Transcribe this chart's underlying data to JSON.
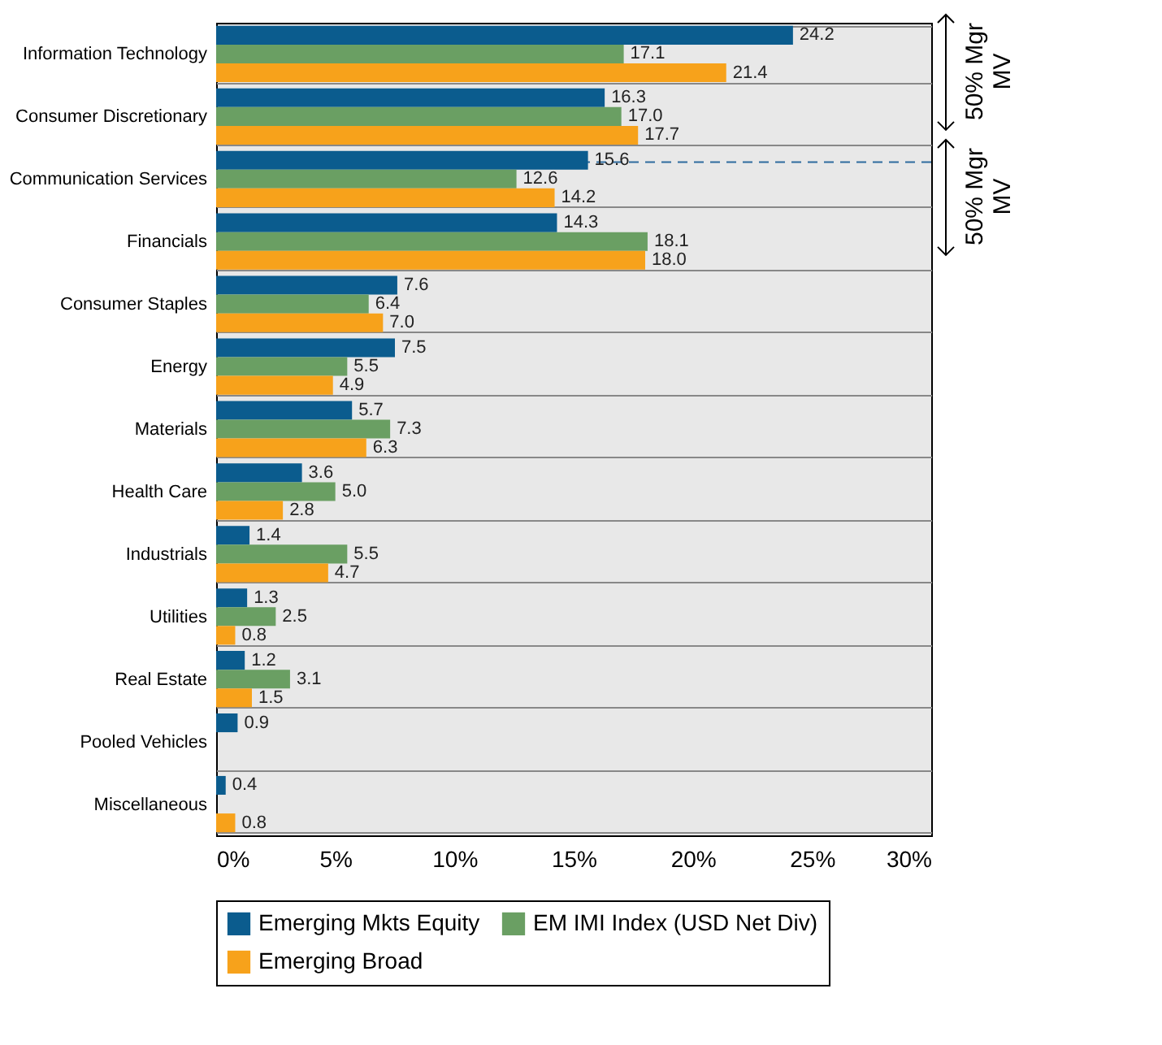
{
  "chart_data": {
    "type": "bar",
    "orientation": "horizontal",
    "categories": [
      "Information Technology",
      "Consumer Discretionary",
      "Communication Services",
      "Financials",
      "Consumer Staples",
      "Energy",
      "Materials",
      "Health Care",
      "Industrials",
      "Utilities",
      "Real Estate",
      "Pooled Vehicles",
      "Miscellaneous"
    ],
    "series": [
      {
        "name": "Emerging Mkts Equity",
        "color": "#0b5c8e",
        "values": [
          24.2,
          16.3,
          15.6,
          14.3,
          7.6,
          7.5,
          5.7,
          3.6,
          1.4,
          1.3,
          1.2,
          0.9,
          0.4
        ],
        "value_labels": [
          "24.2",
          "16.3",
          "15.6",
          "14.3",
          "7.6",
          "7.5",
          "5.7",
          "3.6",
          "1.4",
          "1.3",
          "1.2",
          "0.9",
          "0.4"
        ]
      },
      {
        "name": "EM IMI Index (USD Net Div)",
        "color": "#6a9f63",
        "values": [
          17.1,
          17.0,
          12.6,
          18.1,
          6.4,
          5.5,
          7.3,
          5.0,
          5.5,
          2.5,
          3.1,
          null,
          null
        ],
        "value_labels": [
          "17.1",
          "17.0",
          "12.6",
          "18.1",
          "6.4",
          "5.5",
          "7.3",
          "5.0",
          "5.5",
          "2.5",
          "3.1",
          null,
          null
        ]
      },
      {
        "name": "Emerging Broad",
        "color": "#f7a21b",
        "values": [
          21.4,
          17.7,
          14.2,
          18.0,
          7.0,
          4.9,
          6.3,
          2.8,
          4.7,
          0.8,
          1.5,
          null,
          0.8
        ],
        "value_labels": [
          "21.4",
          "17.7",
          "14.2",
          "18.0",
          "7.0",
          "4.9",
          "6.3",
          "2.8",
          "4.7",
          "0.8",
          "1.5",
          null,
          "0.8"
        ]
      }
    ],
    "xlim": [
      0,
      30
    ],
    "xticks": [
      {
        "value": 0,
        "label": "0%"
      },
      {
        "value": 5,
        "label": "5%"
      },
      {
        "value": 10,
        "label": "10%"
      },
      {
        "value": 15,
        "label": "15%"
      },
      {
        "value": 20,
        "label": "20%"
      },
      {
        "value": 25,
        "label": "25%"
      },
      {
        "value": 30,
        "label": "30%"
      }
    ],
    "grid": "y",
    "legend": "bottom",
    "ref_lines": [
      {
        "axis": "y",
        "value": "Communication Services",
        "line_style": "dashed",
        "color": "#2e6b9e"
      }
    ],
    "annotations": [
      "50% Mgr MV",
      "50% Mgr MV"
    ]
  }
}
